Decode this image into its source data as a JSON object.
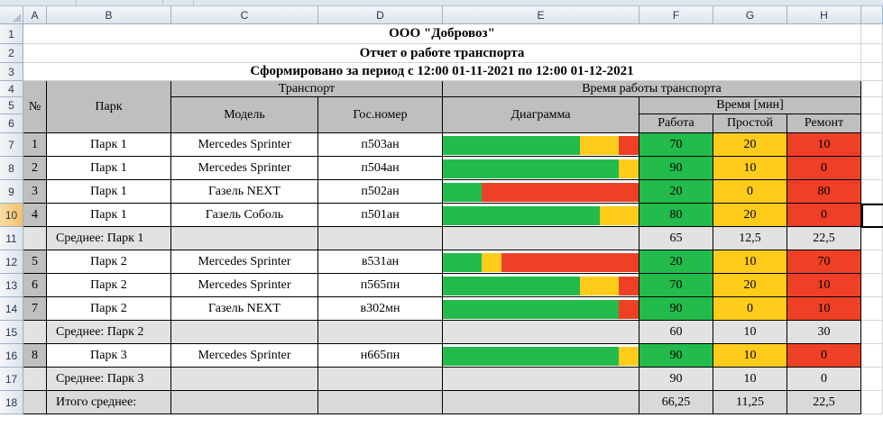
{
  "column_headers": [
    "A",
    "B",
    "C",
    "D",
    "E",
    "F",
    "G",
    "H"
  ],
  "row_headers": [
    "1",
    "2",
    "3",
    "4",
    "5",
    "6",
    "7",
    "8",
    "9",
    "10",
    "11",
    "12",
    "13",
    "14",
    "15",
    "16",
    "17",
    "18"
  ],
  "selected_row": "10",
  "title": "ООО \"Добровоз\"",
  "subtitle": "Отчет о работе транспорта",
  "period": "Сформировано за период с 12:00 01-11-2021 по 12:00 01-12-2021",
  "header": {
    "num": "№",
    "park": "Парк",
    "transport": "Транспорт",
    "model": "Модель",
    "gosnomer": "Гос.номер",
    "time_block": "Время работы транспорта",
    "diagram": "Диаграмма",
    "time_min": "Время [мин]",
    "work": "Работа",
    "idle": "Простой",
    "repair": "Ремонт"
  },
  "rows": [
    {
      "type": "data",
      "num": "1",
      "park": "Парк 1",
      "model": "Mercedes Sprinter",
      "plate": "п503ан",
      "work": "70",
      "idle": "20",
      "repair": "10"
    },
    {
      "type": "data",
      "num": "2",
      "park": "Парк 1",
      "model": "Mercedes Sprinter",
      "plate": "п504ан",
      "work": "90",
      "idle": "10",
      "repair": "0"
    },
    {
      "type": "data",
      "num": "3",
      "park": "Парк 1",
      "model": "Газель NEXT",
      "plate": "п502ан",
      "work": "20",
      "idle": "0",
      "repair": "80"
    },
    {
      "type": "data",
      "num": "4",
      "park": "Парк 1",
      "model": "Газель Соболь",
      "plate": "п501ан",
      "work": "80",
      "idle": "20",
      "repair": "0"
    },
    {
      "type": "avg",
      "label": "Среднее: Парк 1",
      "work": "65",
      "idle": "12,5",
      "repair": "22,5"
    },
    {
      "type": "data",
      "num": "5",
      "park": "Парк 2",
      "model": "Mercedes Sprinter",
      "plate": "в531ан",
      "work": "20",
      "idle": "10",
      "repair": "70"
    },
    {
      "type": "data",
      "num": "6",
      "park": "Парк 2",
      "model": "Mercedes Sprinter",
      "plate": "п565пн",
      "work": "70",
      "idle": "20",
      "repair": "10"
    },
    {
      "type": "data",
      "num": "7",
      "park": "Парк 2",
      "model": "Газель NEXT",
      "plate": "в302мн",
      "work": "90",
      "idle": "0",
      "repair": "10"
    },
    {
      "type": "avg",
      "label": "Среднее: Парк 2",
      "work": "60",
      "idle": "10",
      "repair": "30"
    },
    {
      "type": "data",
      "num": "8",
      "park": "Парк 3",
      "model": "Mercedes Sprinter",
      "plate": "н665пн",
      "work": "90",
      "idle": "10",
      "repair": "0"
    },
    {
      "type": "avg",
      "label": "Среднее: Парк 3",
      "work": "90",
      "idle": "10",
      "repair": "0"
    },
    {
      "type": "total",
      "label": "Итого среднее:",
      "work": "66,25",
      "idle": "11,25",
      "repair": "22,5"
    }
  ],
  "colors": {
    "work": "#22bb4c",
    "idle": "#ffcc1c",
    "repair": "#ee4027",
    "header_gray": "#bfbfbf",
    "summary_gray": "#d9d9d9"
  }
}
